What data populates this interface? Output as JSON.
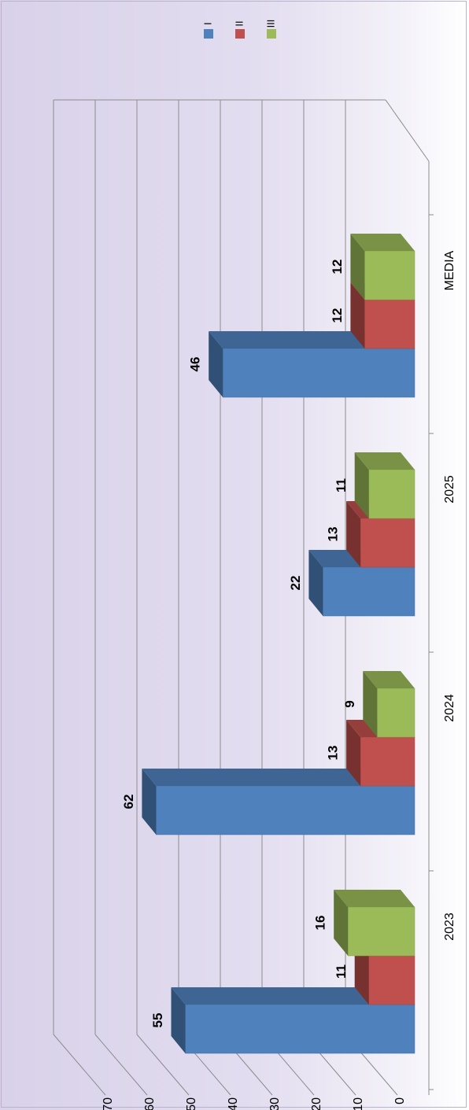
{
  "chart_data": {
    "type": "bar",
    "categories": [
      "2023",
      "2024",
      "2025",
      "MEDIA"
    ],
    "series": [
      {
        "name": "I",
        "values": [
          55,
          62,
          22,
          46
        ],
        "color": "#4f81bd"
      },
      {
        "name": "II",
        "values": [
          11,
          13,
          13,
          12
        ],
        "color": "#c0504d"
      },
      {
        "name": "III",
        "values": [
          16,
          9,
          11,
          12
        ],
        "color": "#9bbb59"
      }
    ],
    "ylim": [
      0,
      70
    ],
    "yticks": [
      "0",
      "10",
      "20",
      "30",
      "40",
      "50",
      "60",
      "70"
    ],
    "grid": true,
    "legend": "top-right",
    "orientation": "rotated-90",
    "style": "3d-clustered-column"
  }
}
